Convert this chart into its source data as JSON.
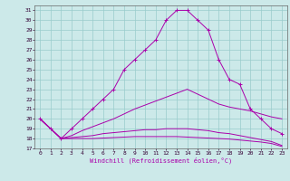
{
  "xlabel": "Windchill (Refroidissement éolien,°C)",
  "xlim": [
    -0.5,
    23.5
  ],
  "ylim": [
    17,
    31.5
  ],
  "xticks": [
    0,
    1,
    2,
    3,
    4,
    5,
    6,
    7,
    8,
    9,
    10,
    11,
    12,
    13,
    14,
    15,
    16,
    17,
    18,
    19,
    20,
    21,
    22,
    23
  ],
  "yticks": [
    17,
    18,
    19,
    20,
    21,
    22,
    23,
    24,
    25,
    26,
    27,
    28,
    29,
    30,
    31
  ],
  "bg_color": "#cce9e9",
  "line_color": "#aa00aa",
  "grid_color": "#99cccc",
  "curves": [
    {
      "x": [
        0,
        1,
        2,
        3,
        4,
        5,
        6,
        7,
        8,
        9,
        10,
        11,
        12,
        13,
        14,
        15,
        16,
        17,
        18,
        19,
        20,
        21,
        22,
        23
      ],
      "y": [
        20,
        19,
        18,
        19,
        20,
        21,
        22,
        23,
        25,
        26,
        27,
        28,
        30,
        31,
        31,
        30,
        29,
        26,
        24,
        23.5,
        21,
        20,
        19,
        18.5
      ],
      "marker": "+"
    },
    {
      "x": [
        0,
        1,
        2,
        3,
        4,
        5,
        6,
        7,
        8,
        9,
        10,
        11,
        12,
        13,
        14,
        15,
        16,
        17,
        18,
        19,
        20,
        21,
        22,
        23
      ],
      "y": [
        20,
        19,
        18,
        18.3,
        18.8,
        19.2,
        19.6,
        20.0,
        20.5,
        21.0,
        21.4,
        21.8,
        22.2,
        22.6,
        23.0,
        22.5,
        22.0,
        21.5,
        21.2,
        21.0,
        20.8,
        20.5,
        20.2,
        20.0
      ],
      "marker": null
    },
    {
      "x": [
        0,
        1,
        2,
        3,
        4,
        5,
        6,
        7,
        8,
        9,
        10,
        11,
        12,
        13,
        14,
        15,
        16,
        17,
        18,
        19,
        20,
        21,
        22,
        23
      ],
      "y": [
        20,
        19,
        18,
        18.1,
        18.2,
        18.3,
        18.5,
        18.6,
        18.7,
        18.8,
        18.9,
        18.9,
        19.0,
        19.0,
        19.0,
        18.9,
        18.8,
        18.6,
        18.5,
        18.3,
        18.1,
        17.9,
        17.7,
        17.3
      ],
      "marker": null
    },
    {
      "x": [
        0,
        1,
        2,
        3,
        4,
        5,
        6,
        7,
        8,
        9,
        10,
        11,
        12,
        13,
        14,
        15,
        16,
        17,
        18,
        19,
        20,
        21,
        22,
        23
      ],
      "y": [
        20,
        19,
        18,
        18.0,
        18.0,
        18.0,
        18.05,
        18.1,
        18.15,
        18.2,
        18.2,
        18.2,
        18.2,
        18.2,
        18.15,
        18.1,
        18.05,
        18.0,
        17.95,
        17.85,
        17.75,
        17.65,
        17.5,
        17.2
      ],
      "marker": null
    }
  ]
}
